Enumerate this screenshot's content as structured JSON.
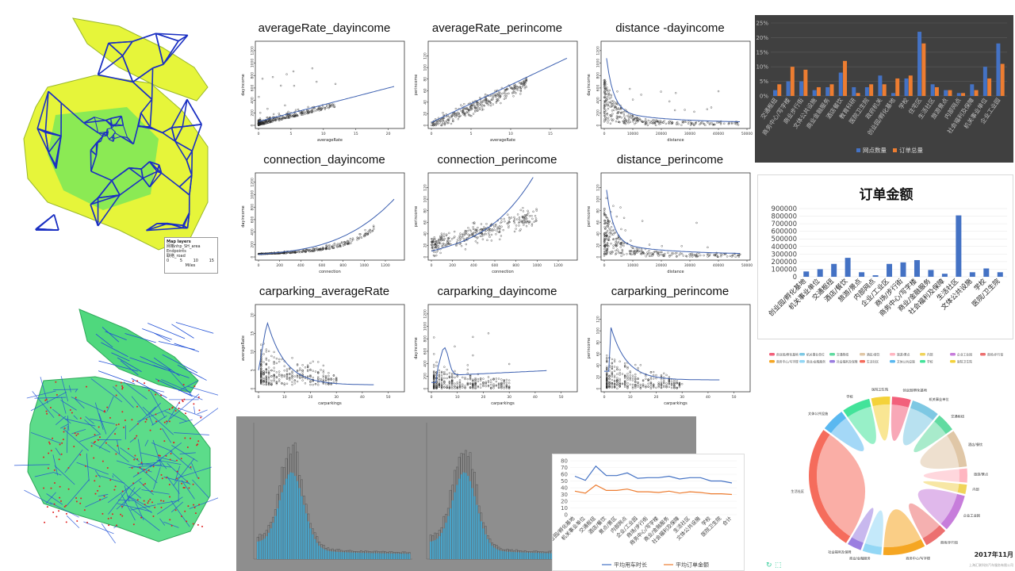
{
  "scatter_titles": [
    "averageRate_dayincome",
    "averageRate_perincome",
    "distance -dayincome",
    "connection_dayincome",
    "connection_perincome",
    "distance_perincome",
    "carparking_averageRate",
    "carparking_dayincome",
    "carparking_perincome"
  ],
  "scatter_xlabels": [
    "averageRate",
    "averageRate",
    "distance",
    "connection",
    "connection",
    "distance",
    "carparkings",
    "carparkings",
    "carparkings"
  ],
  "scatter_ylabels": [
    "dayincome",
    "perincome",
    "dayincome",
    "dayincome",
    "perincome",
    "perincome",
    "averageRate",
    "dayincome",
    "perincome"
  ],
  "map_legend": {
    "title": "Map layers",
    "items": [
      "网格nhp_SH_area",
      "Endpoints",
      "联络_road"
    ],
    "scale_ticks": [
      "0",
      "5",
      "10",
      "15"
    ],
    "unit": "Miles"
  },
  "colors": {
    "map_yellow": "#e6f53a",
    "map_green": "#3fe06a",
    "road_blue": "#1a2fc2",
    "dark_bg": "#404040",
    "blue": "#4472c4",
    "orange": "#ed7d31",
    "hist_bg": "#8e8e8e",
    "hist_bar": "#4aa3c8"
  },
  "chord": {
    "year": "2017年11月",
    "footer": "上海汇联科技汽车服务有限公司"
  },
  "chart_data": [
    {
      "type": "bar",
      "title": "",
      "categories": [
        "交通枢纽",
        "商务中心/写字楼",
        "商业步行街",
        "文体公共设施",
        "商业金融服务",
        "酒店餐饮",
        "教育科研",
        "医院卫生院",
        "政府机关",
        "创业园/孵化基地",
        "学校",
        "住宅区",
        "生活社区",
        "旅游景点",
        "内部网点",
        "社会福利及保障",
        "机关事业单位",
        "企业工业园"
      ],
      "series": [
        {
          "name": "网点数量",
          "values": [
            2,
            5,
            5,
            2,
            3,
            8,
            3,
            3,
            7,
            1,
            6,
            22,
            4,
            2,
            1,
            4,
            10,
            18
          ]
        },
        {
          "name": "订单总量",
          "values": [
            4,
            10,
            9,
            3,
            4,
            12,
            1,
            4,
            4,
            6,
            7,
            18,
            3,
            2,
            1,
            2,
            6,
            11
          ]
        }
      ],
      "ylim": [
        0,
        25
      ],
      "yticks": [
        "0%",
        "5%",
        "10%",
        "15%",
        "20%",
        "25%"
      ],
      "legend": "bottom"
    },
    {
      "type": "bar",
      "title": "订单金额",
      "categories": [
        "创业园/孵化基地",
        "机关事业单位",
        "交通枢纽",
        "酒店/餐饮",
        "旅游/景点",
        "内部网点",
        "企业/工业区",
        "商场/步行街",
        "商务中心/写字楼",
        "商业/金融服务",
        "社会福利及保障",
        "生活社区",
        "文体公共设施",
        "学校",
        "医院/卫生院"
      ],
      "values": [
        70000,
        100000,
        170000,
        250000,
        60000,
        20000,
        170000,
        190000,
        220000,
        90000,
        40000,
        810000,
        60000,
        110000,
        60000
      ],
      "ylim": [
        0,
        900000
      ],
      "yticks": [
        "0",
        "100000",
        "200000",
        "300000",
        "400000",
        "500000",
        "600000",
        "700000",
        "800000",
        "900000"
      ]
    },
    {
      "type": "line",
      "title": "",
      "categories": [
        "创业园/孵化基地",
        "机关事业单位",
        "交通枢纽",
        "酒店/餐饮",
        "景点/景区",
        "内部网点",
        "企业/工业园",
        "商场/步行街",
        "商务中心/写字楼",
        "商业/金融服务",
        "社会福利及保障",
        "生活社区",
        "文体公共设施",
        "学校",
        "医院卫生院",
        "合计"
      ],
      "series": [
        {
          "name": "平均用车时长",
          "values": [
            57,
            51,
            72,
            58,
            58,
            62,
            54,
            55,
            55,
            57,
            53,
            55,
            55,
            50,
            50,
            47
          ]
        },
        {
          "name": "平均订单金额",
          "values": [
            35,
            32,
            44,
            36,
            36,
            38,
            34,
            34,
            33,
            35,
            32,
            34,
            33,
            31,
            31,
            30
          ]
        }
      ],
      "ylim": [
        0,
        80
      ],
      "yticks": [
        "0",
        "10",
        "20",
        "30",
        "40",
        "50",
        "60",
        "70",
        "80"
      ],
      "legend": "bottom"
    },
    {
      "type": "scatter",
      "title": "averageRate_dayincome",
      "xlabel": "averageRate",
      "ylabel": "dayincome",
      "xlim": [
        0,
        22
      ],
      "ylim": [
        0,
        1300
      ],
      "xticks": [
        0,
        5,
        10,
        15,
        20
      ],
      "yticks": [
        0,
        200,
        400,
        600,
        800,
        1000,
        1200
      ]
    },
    {
      "type": "pie",
      "title": "",
      "categories": [
        "创业园/孵化基地",
        "机关事业单位",
        "交通枢纽",
        "酒店/餐饮",
        "旅游/景点",
        "内部",
        "企业工业园",
        "商场/步行街",
        "商务中心/写字楼",
        "商业/金融服务",
        "社会福利及保障",
        "生活社区",
        "文体公共设施",
        "学校",
        "医院卫生院"
      ],
      "values": [
        4,
        6,
        4,
        8,
        3,
        2,
        8,
        5,
        9,
        4,
        3,
        27,
        5,
        6,
        4
      ]
    }
  ]
}
